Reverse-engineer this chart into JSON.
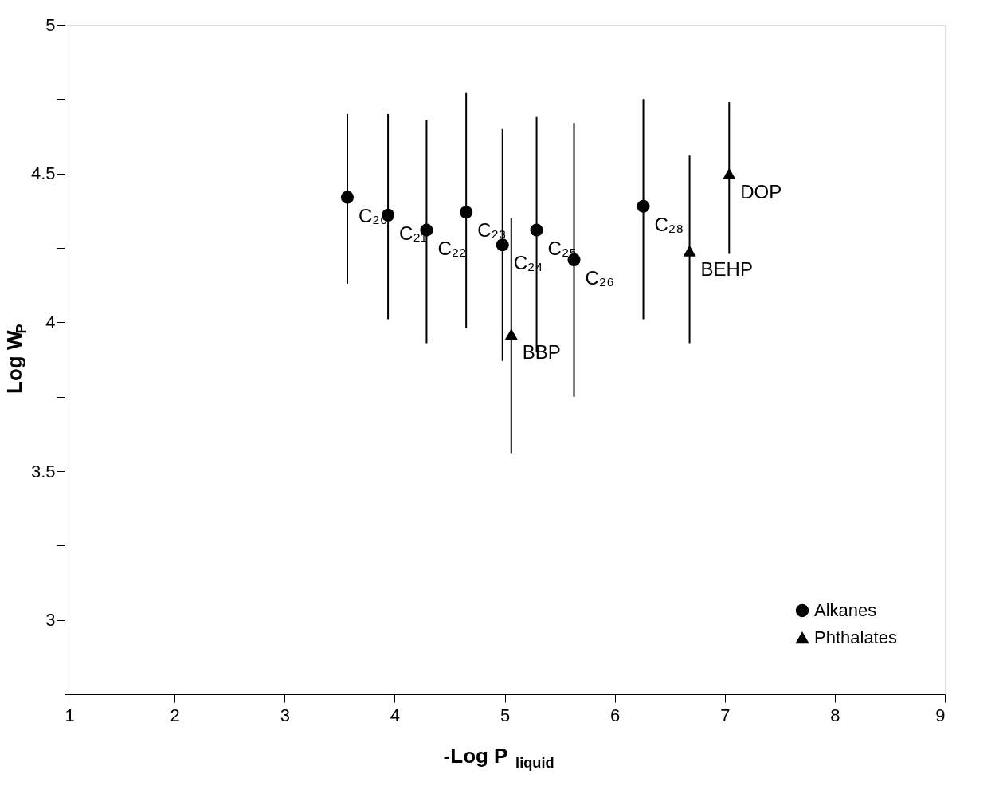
{
  "chart_data": {
    "type": "scatter",
    "xlabel": "-Log P$_{liquid}$",
    "ylabel": "Log W$_{P}$",
    "xlim": [
      1,
      9
    ],
    "xticks": [
      1,
      2,
      3,
      4,
      5,
      6,
      7,
      8,
      9
    ],
    "ylim": [
      2.75,
      5
    ],
    "yticks": [
      3,
      {
        "value": 3.25,
        "label": null
      },
      3.5,
      {
        "value": 3.75,
        "label": null
      },
      4,
      {
        "value": 4.25,
        "label": null
      },
      4.5,
      {
        "value": 4.75,
        "label": null
      },
      5
    ],
    "grid": false,
    "legend": "bottom right",
    "series": [
      {
        "name": "Alkanes",
        "color": "#000000",
        "marker": "circle",
        "x": [
          3.57,
          3.94,
          4.29,
          4.65,
          4.98,
          5.29,
          5.63,
          6.26
        ],
        "values": [
          4.42,
          4.36,
          4.31,
          4.37,
          4.26,
          4.31,
          4.21,
          4.39
        ],
        "errors": [
          [
            4.13,
            4.7
          ],
          [
            4.01,
            4.7
          ],
          [
            3.93,
            4.68
          ],
          [
            3.98,
            4.77
          ],
          [
            3.87,
            4.65
          ],
          [
            3.9,
            4.69
          ],
          [
            3.75,
            4.67
          ],
          [
            4.01,
            4.75
          ]
        ]
      },
      {
        "name": "Phthalates",
        "color": "#000000",
        "marker": "triangle",
        "x": [
          5.06,
          6.68,
          7.04
        ],
        "values": [
          3.96,
          4.24,
          4.5
        ],
        "errors": [
          [
            3.56,
            4.35
          ],
          [
            3.93,
            4.56
          ],
          [
            4.23,
            4.74
          ]
        ]
      }
    ],
    "annotations": [
      {
        "text": "C₂₀",
        "x": 3.57,
        "y": 4.42
      },
      {
        "text": "C₂₁",
        "x": 3.94,
        "y": 4.36
      },
      {
        "text": "C₂₂",
        "x": 4.29,
        "y": 4.31
      },
      {
        "text": "C₂₃",
        "x": 4.65,
        "y": 4.37
      },
      {
        "text": "C₂₄",
        "x": 4.98,
        "y": 4.26
      },
      {
        "text": "C₂₅",
        "x": 5.29,
        "y": 4.31
      },
      {
        "text": "C₂₆",
        "x": 5.63,
        "y": 4.21
      },
      {
        "text": "C₂₈",
        "x": 6.26,
        "y": 4.39
      },
      {
        "text": "BBP",
        "x": 5.06,
        "y": 3.96
      },
      {
        "text": "BEHP",
        "x": 6.68,
        "y": 4.24
      },
      {
        "text": "DOP",
        "x": 7.04,
        "y": 4.5
      }
    ]
  }
}
